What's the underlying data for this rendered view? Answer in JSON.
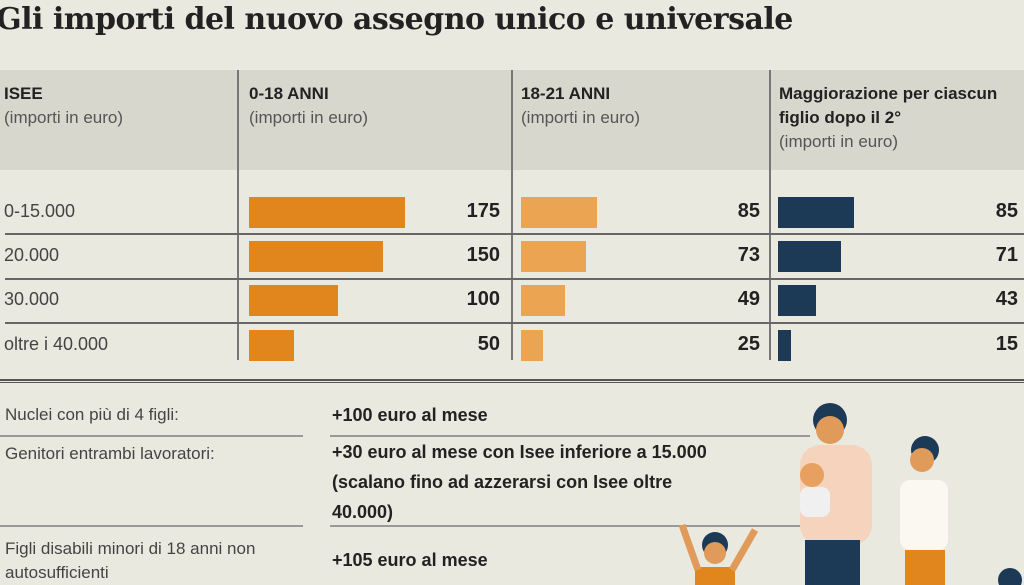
{
  "title": "Gli importi del nuovo assegno unico e universale",
  "colors": {
    "col_0_18": "#e0861c",
    "col_18_21": "#eba452",
    "maggiorazione": "#1c3a56"
  },
  "chart_data": {
    "type": "bar",
    "row_header": {
      "label": "ISEE",
      "sub": "(importi in euro)"
    },
    "categories": [
      "0-15.000",
      "20.000",
      "30.000",
      "oltre i 40.000"
    ],
    "series": [
      {
        "name": "0-18 ANNI",
        "sub": "(importi in euro)",
        "values": [
          175,
          150,
          100,
          50
        ]
      },
      {
        "name": "18-21 ANNI",
        "sub": "(importi in euro)",
        "values": [
          85,
          73,
          49,
          25
        ]
      },
      {
        "name": "Maggiorazione per ciascun figlio dopo il 2°",
        "sub": "(importi in euro)",
        "values": [
          85,
          71,
          43,
          15
        ]
      }
    ]
  },
  "extras": [
    {
      "label": "Nuclei con più di 4 figli:",
      "value": "+100 euro al mese"
    },
    {
      "label": "Genitori entrambi lavoratori:",
      "value": "+30 euro al mese con Isee inferiore a 15.000 (scalano fino ad azzerarsi con Isee oltre 40.000)"
    },
    {
      "label": "Figli disabili minori di 18 anni non autosufficienti",
      "value": "+105 euro al mese"
    }
  ]
}
